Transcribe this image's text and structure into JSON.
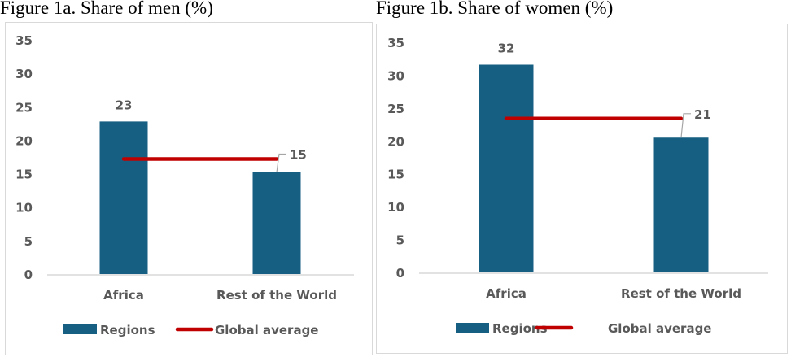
{
  "colors": {
    "bar": "#175f82",
    "line": "#c00000",
    "text": "#595959",
    "axis": "#d9d9d9",
    "leader": "#a6a6a6"
  },
  "chart_data": [
    {
      "type": "bar",
      "title": "Figure 1a. Share of men (%)",
      "categories": [
        "Africa",
        "Rest of the World"
      ],
      "series": [
        {
          "name": "Regions",
          "type": "bar",
          "values": [
            22.8,
            15.2
          ],
          "data_labels": [
            "23",
            "15"
          ]
        },
        {
          "name": "Global average",
          "type": "line",
          "values": [
            17.2,
            17.2
          ]
        }
      ],
      "ylim": [
        0,
        35
      ],
      "yticks": [
        "0",
        "5",
        "10",
        "15",
        "20",
        "25",
        "30",
        "35"
      ],
      "legend": "bottom",
      "grid": false
    },
    {
      "type": "bar",
      "title": "Figure 1b. Share of women (%)",
      "categories": [
        "Africa",
        "Rest of the World"
      ],
      "series": [
        {
          "name": "Regions",
          "type": "bar",
          "values": [
            31.6,
            20.5
          ],
          "data_labels": [
            "32",
            "21"
          ]
        },
        {
          "name": "Global average",
          "type": "line",
          "values": [
            23.4,
            23.4
          ]
        }
      ],
      "ylim": [
        0,
        35
      ],
      "yticks": [
        "0",
        "5",
        "10",
        "15",
        "20",
        "25",
        "30",
        "35"
      ],
      "legend": "bottom",
      "grid": false
    }
  ]
}
